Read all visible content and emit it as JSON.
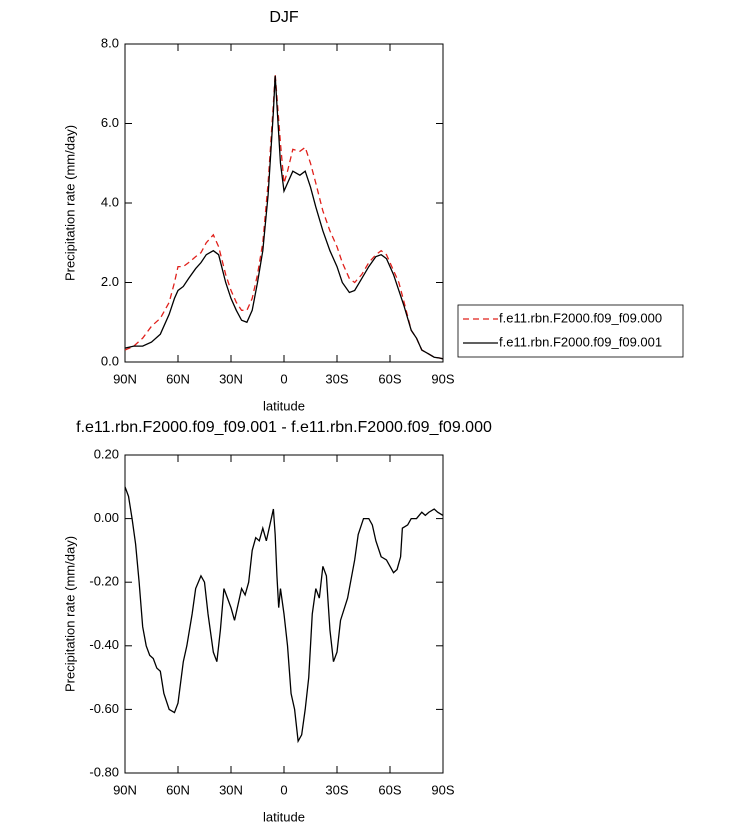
{
  "chart_data": [
    {
      "type": "line",
      "title": "DJF",
      "x_label": "latitude",
      "y_label": "Precipitation rate (mm/day)",
      "x": [
        90,
        85,
        80,
        75,
        70,
        65,
        62,
        60,
        57,
        54,
        50,
        47,
        44,
        40,
        37,
        33,
        30,
        27,
        24,
        21,
        18,
        15,
        12,
        9,
        6,
        5,
        2,
        0,
        -2,
        -5,
        -9,
        -12,
        -15,
        -18,
        -22,
        -26,
        -30,
        -33,
        -37,
        -40,
        -44,
        -48,
        -52,
        -55,
        -58,
        -62,
        -65,
        -68,
        -72,
        -75,
        -78,
        -82,
        -85,
        -88,
        -90
      ],
      "series": [
        {
          "name": "f.e11.rbn.F2000.f09_f09.000",
          "color": "#e0201b",
          "dash": true,
          "values": [
            0.3,
            0.4,
            0.6,
            0.9,
            1.1,
            1.5,
            2.0,
            2.4,
            2.4,
            2.5,
            2.65,
            2.75,
            3.0,
            3.2,
            2.9,
            2.2,
            1.8,
            1.5,
            1.3,
            1.3,
            1.6,
            2.2,
            3.0,
            4.5,
            6.5,
            7.25,
            5.5,
            4.5,
            4.8,
            5.35,
            5.3,
            5.4,
            5.0,
            4.5,
            3.8,
            3.3,
            2.9,
            2.5,
            2.1,
            2.0,
            2.2,
            2.5,
            2.7,
            2.8,
            2.7,
            2.3,
            2.0,
            1.5,
            0.8,
            0.6,
            0.3,
            0.2,
            0.12,
            0.1,
            0.08
          ]
        },
        {
          "name": "f.e11.rbn.F2000.f09_f09.001",
          "color": "#000000",
          "dash": false,
          "values": [
            0.35,
            0.4,
            0.4,
            0.5,
            0.7,
            1.2,
            1.6,
            1.8,
            1.9,
            2.1,
            2.35,
            2.5,
            2.7,
            2.8,
            2.7,
            2.0,
            1.6,
            1.3,
            1.05,
            1.0,
            1.3,
            2.0,
            2.8,
            4.2,
            6.3,
            7.2,
            5.0,
            4.3,
            4.5,
            4.8,
            4.7,
            4.8,
            4.4,
            3.9,
            3.3,
            2.8,
            2.4,
            2.0,
            1.75,
            1.8,
            2.1,
            2.4,
            2.65,
            2.7,
            2.6,
            2.2,
            1.8,
            1.4,
            0.8,
            0.6,
            0.3,
            0.2,
            0.12,
            0.1,
            0.08
          ]
        }
      ],
      "xlim": [
        90,
        -90
      ],
      "xticks": [
        {
          "value": 90,
          "label": "90N"
        },
        {
          "value": 60,
          "label": "60N"
        },
        {
          "value": 30,
          "label": "30N"
        },
        0,
        {
          "value": -30,
          "label": "30S"
        },
        {
          "value": -60,
          "label": "60S"
        },
        {
          "value": -90,
          "label": "90S"
        }
      ],
      "ylim": [
        0,
        8
      ],
      "yticks": [
        {
          "value": 0,
          "label": "0.0"
        },
        {
          "value": 2,
          "label": "2.0"
        },
        {
          "value": 4,
          "label": "4.0"
        },
        {
          "value": 6,
          "label": "6.0"
        },
        {
          "value": 8,
          "label": "8.0"
        }
      ],
      "legend": "right"
    },
    {
      "type": "line",
      "title": "f.e11.rbn.F2000.f09_f09.001 - f.e11.rbn.F2000.f09_f09.000",
      "x_label": "latitude",
      "y_label": "Precipitation rate (mm/day)",
      "x": [
        90,
        88,
        86,
        84,
        82,
        80,
        78,
        76,
        74,
        72,
        70,
        68,
        65,
        62,
        60,
        57,
        55,
        52,
        50,
        47,
        45,
        43,
        40,
        38,
        36,
        34,
        32,
        30,
        28,
        26,
        24,
        22,
        20,
        18,
        16,
        14,
        12,
        10,
        8,
        6,
        5,
        4,
        3,
        2,
        0,
        -2,
        -4,
        -6,
        -8,
        -10,
        -12,
        -14,
        -16,
        -18,
        -20,
        -22,
        -24,
        -26,
        -28,
        -30,
        -32,
        -36,
        -40,
        -42,
        -45,
        -48,
        -50,
        -52,
        -55,
        -58,
        -60,
        -62,
        -64,
        -66,
        -67,
        -70,
        -72,
        -75,
        -78,
        -80,
        -82,
        -85,
        -87,
        -90
      ],
      "values": [
        0.1,
        0.07,
        0.0,
        -0.08,
        -0.2,
        -0.34,
        -0.4,
        -0.43,
        -0.44,
        -0.47,
        -0.48,
        -0.55,
        -0.6,
        -0.61,
        -0.58,
        -0.45,
        -0.4,
        -0.3,
        -0.22,
        -0.18,
        -0.2,
        -0.3,
        -0.42,
        -0.45,
        -0.35,
        -0.22,
        -0.25,
        -0.28,
        -0.32,
        -0.27,
        -0.22,
        -0.24,
        -0.2,
        -0.1,
        -0.06,
        -0.07,
        -0.03,
        -0.07,
        -0.02,
        0.03,
        -0.05,
        -0.18,
        -0.28,
        -0.22,
        -0.3,
        -0.4,
        -0.55,
        -0.6,
        -0.7,
        -0.68,
        -0.6,
        -0.5,
        -0.3,
        -0.22,
        -0.25,
        -0.15,
        -0.18,
        -0.35,
        -0.45,
        -0.42,
        -0.32,
        -0.25,
        -0.13,
        -0.05,
        0.0,
        0.0,
        -0.02,
        -0.07,
        -0.12,
        -0.13,
        -0.15,
        -0.17,
        -0.16,
        -0.12,
        -0.03,
        -0.02,
        0.0,
        0.0,
        0.02,
        0.01,
        0.02,
        0.03,
        0.02,
        0.01
      ],
      "color": "#000000",
      "xlim": [
        90,
        -90
      ],
      "xticks": [
        {
          "value": 90,
          "label": "90N"
        },
        {
          "value": 60,
          "label": "60N"
        },
        {
          "value": 30,
          "label": "30N"
        },
        0,
        {
          "value": -30,
          "label": "30S"
        },
        {
          "value": -60,
          "label": "60S"
        },
        {
          "value": -90,
          "label": "90S"
        }
      ],
      "ylim": [
        -0.8,
        0.2
      ],
      "yticks": [
        {
          "value": -0.8,
          "label": "-0.80"
        },
        {
          "value": -0.6,
          "label": "-0.60"
        },
        {
          "value": -0.4,
          "label": "-0.40"
        },
        {
          "value": -0.2,
          "label": "-0.20"
        },
        {
          "value": 0,
          "label": "0.00"
        },
        {
          "value": 0.2,
          "label": "0.20"
        }
      ]
    }
  ]
}
